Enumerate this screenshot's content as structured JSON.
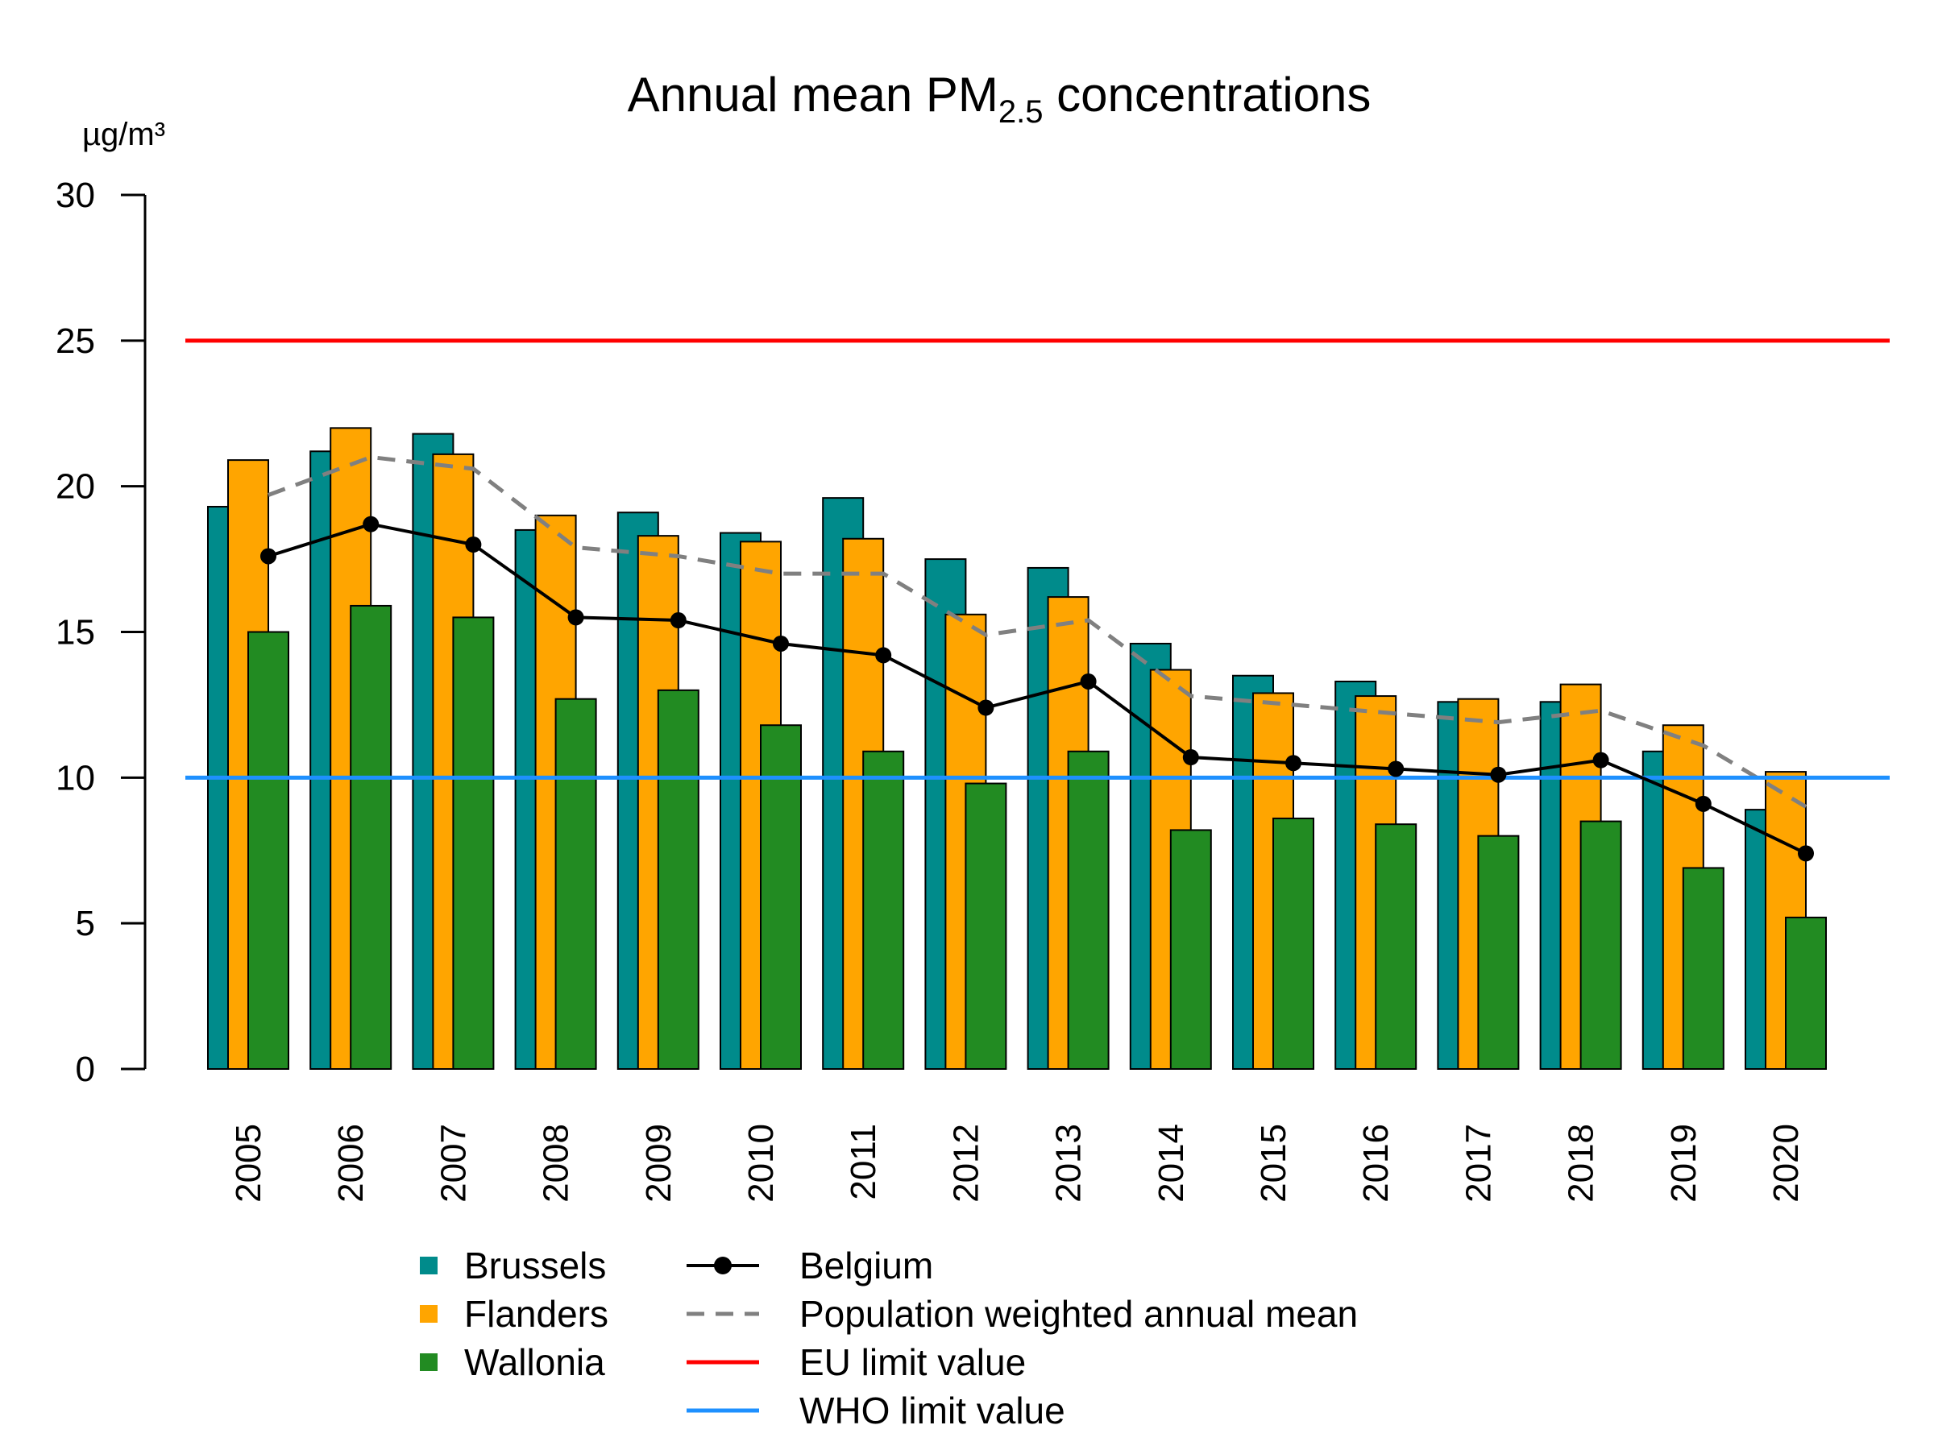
{
  "chart_data": {
    "type": "bar",
    "title": "Annual mean PM",
    "title_subscript": "2.5",
    "title_suffix": " concentrations",
    "ylabel": "µg/m³",
    "xlabel": "",
    "ylim": [
      0,
      30
    ],
    "yticks": [
      0,
      5,
      10,
      15,
      20,
      25,
      30
    ],
    "grid": false,
    "legend_position": "bottom",
    "categories": [
      "2005",
      "2006",
      "2007",
      "2008",
      "2009",
      "2010",
      "2011",
      "2012",
      "2013",
      "2014",
      "2015",
      "2016",
      "2017",
      "2018",
      "2019",
      "2020"
    ],
    "series": [
      {
        "name": "Brussels",
        "kind": "bar",
        "color": "#008B8B",
        "values": [
          19.3,
          21.2,
          21.8,
          18.5,
          19.1,
          18.4,
          19.6,
          17.5,
          17.2,
          14.6,
          13.5,
          13.3,
          12.6,
          12.6,
          10.9,
          8.9
        ]
      },
      {
        "name": "Flanders",
        "kind": "bar",
        "color": "#FFA500",
        "values": [
          20.9,
          22.0,
          21.1,
          19.0,
          18.3,
          18.1,
          18.2,
          15.6,
          16.2,
          13.7,
          12.9,
          12.8,
          12.7,
          13.2,
          11.8,
          10.2
        ]
      },
      {
        "name": "Wallonia",
        "kind": "bar",
        "color": "#228B22",
        "values": [
          15.0,
          15.9,
          15.5,
          12.7,
          13.0,
          11.8,
          10.9,
          9.8,
          10.9,
          8.2,
          8.6,
          8.4,
          8.0,
          8.5,
          6.9,
          5.2
        ]
      },
      {
        "name": "Belgium",
        "kind": "line-marker",
        "color": "#000000",
        "values": [
          17.6,
          18.7,
          18.0,
          15.5,
          15.4,
          14.6,
          14.2,
          12.4,
          13.3,
          10.7,
          10.5,
          10.3,
          10.1,
          10.6,
          9.1,
          7.4
        ]
      },
      {
        "name": "Population weighted annual mean",
        "kind": "dashed-line",
        "color": "#808080",
        "values": [
          19.7,
          21.0,
          20.6,
          17.9,
          17.6,
          17.0,
          17.0,
          14.9,
          15.4,
          12.8,
          12.5,
          12.2,
          11.9,
          12.3,
          11.1,
          9.0
        ]
      }
    ],
    "reference_lines": [
      {
        "name": "EU limit value",
        "value": 25,
        "color": "#FF0000"
      },
      {
        "name": "WHO limit value",
        "value": 10,
        "color": "#1E90FF"
      }
    ]
  }
}
